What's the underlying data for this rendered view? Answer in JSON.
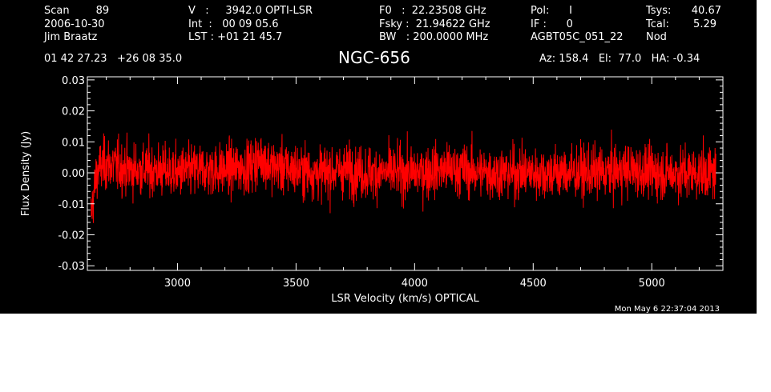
{
  "header": {
    "col1": [
      "Scan        89",
      "2006-10-30",
      "Jim Braatz"
    ],
    "col2": [
      "V   :     3942.0 OPTI-LSR",
      "Int  :   00 09 05.6",
      "LST : +01 21 45.7"
    ],
    "col3": [
      "F0   :  22.23508 GHz",
      "Fsky :  21.94622 GHz",
      "BW   : 200.0000 MHz"
    ],
    "col4": [
      "Pol:      I",
      "IF :      0",
      "AGBT05C_051_22"
    ],
    "col5_labels": [
      "Tsys:",
      "Tcal:",
      "Nod"
    ],
    "col5_values": [
      "40.67",
      "5.29"
    ],
    "coords": "01 42 27.23   +26 08 35.0",
    "source": "NGC-656",
    "pointing": "Az: 158.4   El:  77.0   HA: -0.34",
    "timestamp": "Mon May  6 22:37:04 2013"
  },
  "colors": {
    "background": "#000000",
    "axes": "#ffffff",
    "series": "#ff0000"
  },
  "chart_data": {
    "type": "line",
    "title": "NGC-656",
    "xlabel": "LSR Velocity (km/s) OPTICAL",
    "ylabel": "Flux Density (Jy)",
    "xlim": [
      2620,
      5300
    ],
    "ylim": [
      -0.0315,
      0.031
    ],
    "xticks": [
      {
        "value": 3000,
        "label": "3000"
      },
      {
        "value": 3500,
        "label": "3500"
      },
      {
        "value": 4000,
        "label": "4000"
      },
      {
        "value": 4500,
        "label": "4500"
      },
      {
        "value": 5000,
        "label": "5000"
      }
    ],
    "yticks": [
      {
        "value": 0.03,
        "label": "0.03"
      },
      {
        "value": 0.02,
        "label": "0.02"
      },
      {
        "value": 0.01,
        "label": "0.01"
      },
      {
        "value": 0.0,
        "label": "0.00"
      },
      {
        "value": -0.01,
        "label": "-0.01"
      },
      {
        "value": -0.02,
        "label": "-0.02"
      },
      {
        "value": -0.03,
        "label": "-0.03"
      }
    ],
    "grid": false,
    "series": [
      {
        "values_description_x": [
          2635,
          2645,
          2660,
          2680,
          2700,
          2750,
          2800,
          2900,
          3000,
          3100,
          3200,
          3300,
          3360,
          3380,
          3400,
          3500,
          3600,
          3700,
          3800,
          3900,
          4000,
          4100,
          4200,
          4300,
          4400,
          4500,
          4600,
          4700,
          4800,
          4900,
          5000,
          5100,
          5200,
          5270
        ],
        "values_description_y": [
          -0.014,
          -0.008,
          0.0,
          0.002,
          0.003,
          0.002,
          0.001,
          0.001,
          0.0,
          0.001,
          0.001,
          0.002,
          0.005,
          0.003,
          0.002,
          0.001,
          0.0,
          0.001,
          0.0,
          0.0,
          0.0,
          0.001,
          0.001,
          0.0,
          0.0,
          0.0,
          0.0,
          0.0,
          0.0,
          0.001,
          0.0,
          0.0,
          0.0,
          0.0
        ],
        "noise_rms": 0.005
      }
    ]
  }
}
